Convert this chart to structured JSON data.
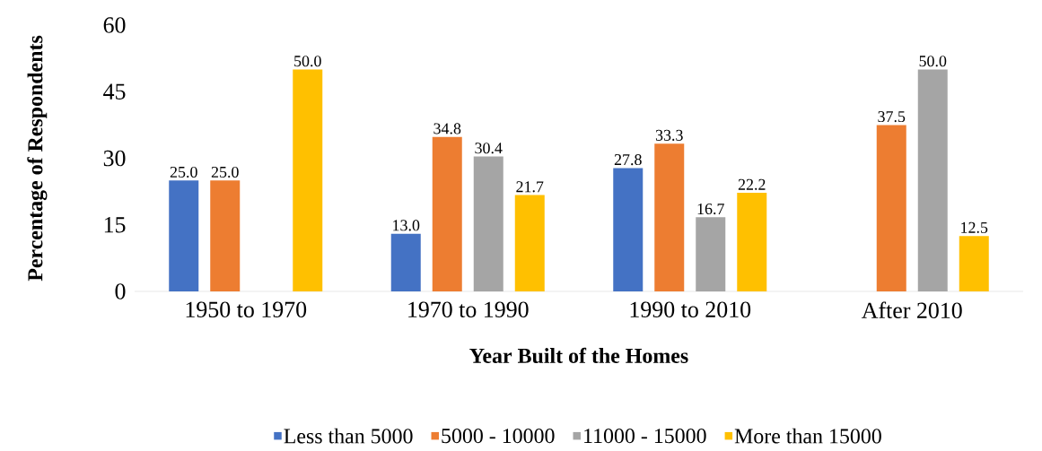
{
  "chart_data": {
    "type": "bar",
    "xlabel": "Year Built of the Homes",
    "ylabel": "Percentage of Respondents",
    "categories": [
      "1950 to 1970",
      "1970 to 1990",
      "1990 to 2010",
      "After 2010"
    ],
    "series": [
      {
        "name": "Less than 5000",
        "color": "#4472c4",
        "values": [
          25.0,
          13.0,
          27.8,
          null
        ],
        "value_labels": [
          "25.0",
          "13.0",
          "27.8",
          null
        ]
      },
      {
        "name": "5000 - 10000",
        "color": "#ed7d31",
        "values": [
          25.0,
          34.8,
          33.3,
          37.5
        ],
        "value_labels": [
          "25.0",
          "34.8",
          "33.3",
          "37.5"
        ]
      },
      {
        "name": "11000 - 15000",
        "color": "#a5a5a5",
        "values": [
          null,
          30.4,
          16.7,
          50.0
        ],
        "value_labels": [
          null,
          "30.4",
          "16.7",
          "50.0"
        ]
      },
      {
        "name": "More than 15000",
        "color": "#ffc000",
        "values": [
          50.0,
          21.7,
          22.2,
          12.5
        ],
        "value_labels": [
          "50.0",
          "21.7",
          "22.2",
          "12.5"
        ]
      }
    ],
    "ylim": [
      0,
      60
    ],
    "yticks": [
      0,
      15,
      30,
      45,
      60
    ],
    "legend": "bottom"
  }
}
